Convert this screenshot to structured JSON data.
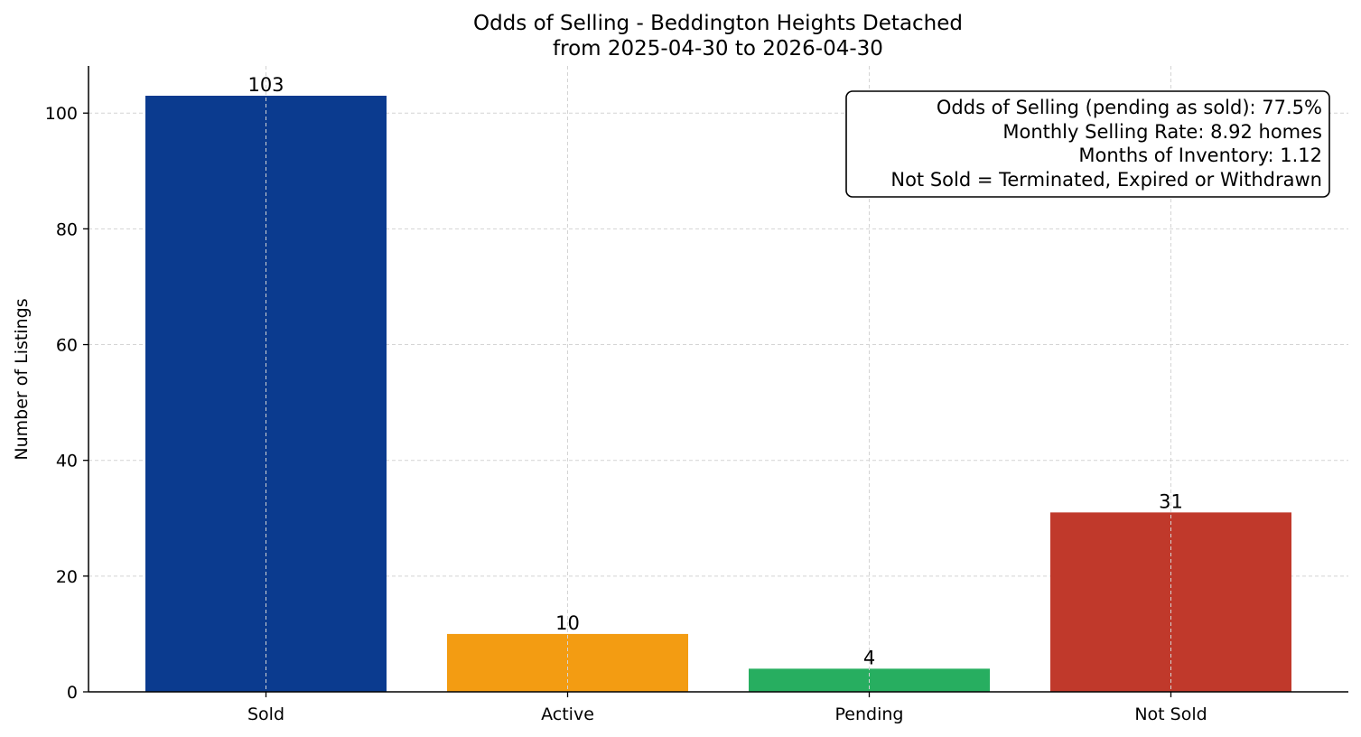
{
  "chart_data": {
    "type": "bar",
    "title": "Odds of Selling - Beddington Heights Detached",
    "subtitle": "from 2025-04-30 to 2026-04-30",
    "xlabel": "",
    "ylabel": "Number of Listings",
    "categories": [
      "Sold",
      "Active",
      "Pending",
      "Not Sold"
    ],
    "values": [
      103,
      10,
      4,
      31
    ],
    "colors": [
      "#0b3b8f",
      "#f39c12",
      "#27ae60",
      "#c0392b"
    ],
    "ylim": [
      0,
      108.15
    ],
    "yticks": [
      0,
      20,
      40,
      60,
      80,
      100
    ],
    "grid": true,
    "legend": "none",
    "annotation": {
      "placement": "top-right",
      "lines": [
        "Odds of Selling (pending as sold): 77.5%",
        "Monthly Selling Rate: 8.92 homes",
        "Months of Inventory: 1.12",
        "Not Sold = Terminated, Expired or Withdrawn"
      ]
    }
  }
}
